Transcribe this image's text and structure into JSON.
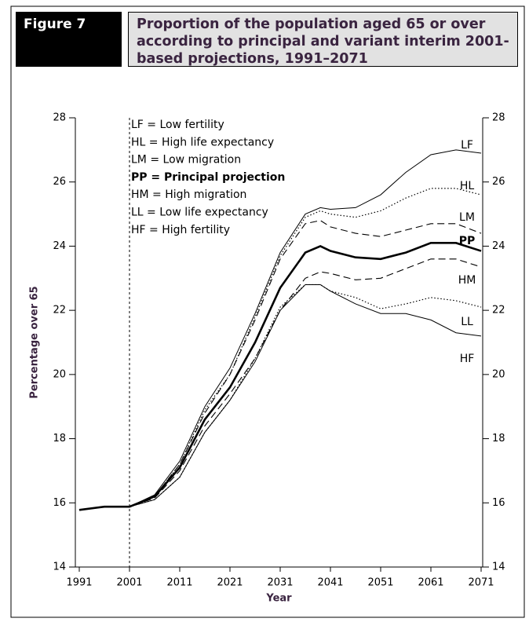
{
  "figure_label": "Figure 7",
  "chart_data": {
    "type": "line",
    "title": "Proportion of the population aged 65 or over according to principal and variant interim 2001-based projections, 1991–2071",
    "x_label": "Year",
    "y_label": "Percentage over 65",
    "x": [
      1991,
      1996,
      2001,
      2006,
      2011,
      2016,
      2021,
      2026,
      2031,
      2036,
      2039,
      2041,
      2046,
      2051,
      2056,
      2061,
      2066,
      2071
    ],
    "xlim": [
      1991,
      2071
    ],
    "xticks": [
      1991,
      2001,
      2011,
      2021,
      2031,
      2041,
      2051,
      2061,
      2071
    ],
    "ylim": [
      14,
      28
    ],
    "yticks": [
      14,
      16,
      18,
      20,
      22,
      24,
      26,
      28
    ],
    "vline": 2001,
    "series": [
      {
        "name": "LF",
        "legend": "LF = Low fertility",
        "color": "#000000",
        "style": "solid",
        "values": [
          15.78,
          15.88,
          15.88,
          16.25,
          17.3,
          19.0,
          20.2,
          21.9,
          23.8,
          25.0,
          25.2,
          25.15,
          25.2,
          25.6,
          26.3,
          26.85,
          27.0,
          26.9
        ]
      },
      {
        "name": "HL",
        "legend": "HL = High life expectancy",
        "color": "#000000",
        "style": "dotted",
        "values": [
          15.78,
          15.88,
          15.88,
          16.2,
          17.2,
          18.9,
          20.0,
          21.8,
          23.7,
          24.9,
          25.1,
          25.0,
          24.9,
          25.1,
          25.5,
          25.8,
          25.8,
          25.6
        ]
      },
      {
        "name": "LM",
        "legend": "LM = Low migration",
        "color": "#000000",
        "style": "dashed",
        "values": [
          15.78,
          15.88,
          15.88,
          16.2,
          17.2,
          18.8,
          20.0,
          21.7,
          23.6,
          24.7,
          24.8,
          24.6,
          24.4,
          24.3,
          24.5,
          24.7,
          24.7,
          24.4
        ]
      },
      {
        "name": "PP",
        "legend": "PP = Principal projection",
        "color": "#000000",
        "style": "bold",
        "values": [
          15.78,
          15.88,
          15.88,
          16.2,
          17.1,
          18.6,
          19.6,
          21.0,
          22.7,
          23.8,
          24.0,
          23.85,
          23.65,
          23.6,
          23.8,
          24.1,
          24.1,
          23.85
        ]
      },
      {
        "name": "HM",
        "legend": "HM = High migration",
        "color": "#000000",
        "style": "dashed",
        "values": [
          15.78,
          15.88,
          15.88,
          16.15,
          17.0,
          18.4,
          19.4,
          20.5,
          22.0,
          23.0,
          23.2,
          23.15,
          22.95,
          23.0,
          23.3,
          23.6,
          23.6,
          23.35
        ]
      },
      {
        "name": "LL",
        "legend": "LL = Low life expectancy",
        "color": "#000000",
        "style": "dotted",
        "values": [
          15.78,
          15.88,
          15.88,
          16.1,
          16.8,
          18.2,
          19.2,
          20.5,
          22.1,
          22.8,
          22.8,
          22.6,
          22.4,
          22.05,
          22.2,
          22.4,
          22.3,
          22.1
        ]
      },
      {
        "name": "HF",
        "legend": "HF = High fertility",
        "color": "#000000",
        "style": "solid",
        "values": [
          15.78,
          15.88,
          15.88,
          16.1,
          16.8,
          18.2,
          19.2,
          20.4,
          22.0,
          22.8,
          22.8,
          22.6,
          22.2,
          21.9,
          21.9,
          21.7,
          21.3,
          21.2
        ]
      }
    ]
  }
}
